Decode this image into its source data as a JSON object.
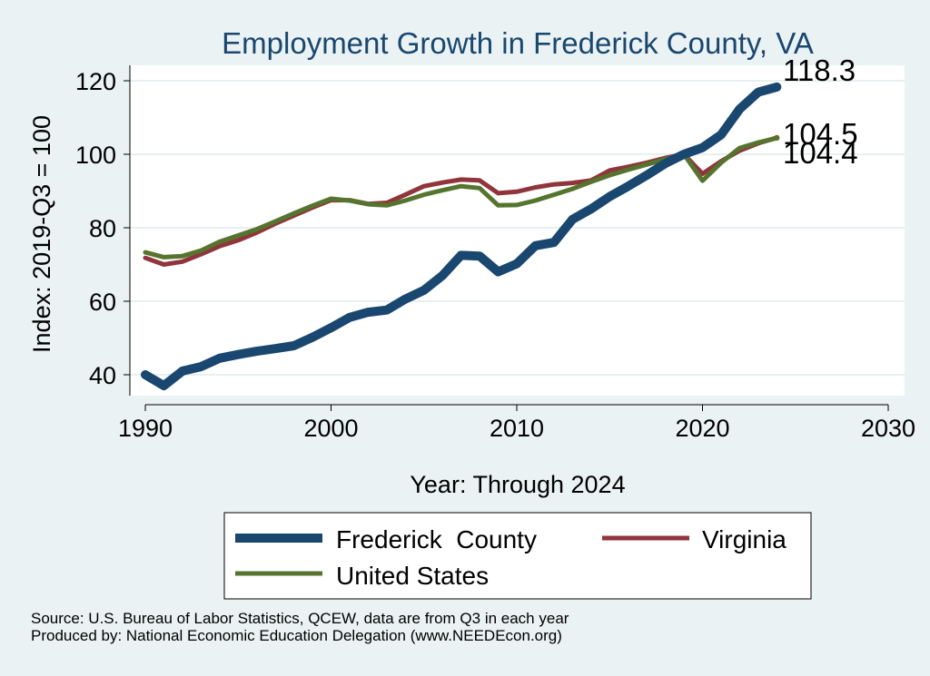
{
  "chart_data": {
    "type": "line",
    "title": "Employment Growth in Frederick County, VA",
    "xlabel": "Year: Through 2024",
    "ylabel": "Index: 2019-Q3 = 100",
    "xlim": [
      1990,
      2030
    ],
    "ylim": [
      35,
      122
    ],
    "xticks": [
      1990,
      2000,
      2010,
      2020,
      2030
    ],
    "yticks": [
      40,
      60,
      80,
      100,
      120
    ],
    "grid": true,
    "legend_position": "bottom",
    "x": [
      1990,
      1991,
      1992,
      1993,
      1994,
      1995,
      1996,
      1997,
      1998,
      1999,
      2000,
      2001,
      2002,
      2003,
      2004,
      2005,
      2006,
      2007,
      2008,
      2009,
      2010,
      2011,
      2012,
      2013,
      2014,
      2015,
      2016,
      2017,
      2018,
      2019,
      2020,
      2021,
      2022,
      2023,
      2024
    ],
    "series": [
      {
        "name": "Frederick  County",
        "color": "#1a476f",
        "end_label": "118.3",
        "values": [
          40.0,
          37.0,
          41.0,
          42.2,
          44.5,
          45.5,
          46.4,
          47.1,
          47.9,
          50.2,
          52.8,
          55.6,
          57.0,
          57.6,
          60.6,
          63.0,
          67.0,
          72.5,
          72.3,
          68.0,
          70.2,
          75.1,
          76.0,
          82.3,
          85.1,
          88.5,
          91.3,
          94.3,
          97.5,
          100.0,
          101.8,
          105.3,
          112.3,
          116.9,
          118.3
        ]
      },
      {
        "name": "Virginia",
        "color": "#90353b",
        "end_label": "104.5",
        "values": [
          71.8,
          70.0,
          70.8,
          72.8,
          75.0,
          76.6,
          78.7,
          81.1,
          83.3,
          85.5,
          87.5,
          87.5,
          86.5,
          86.8,
          89.0,
          91.3,
          92.3,
          93.1,
          92.9,
          89.4,
          89.8,
          91.0,
          91.8,
          92.2,
          92.9,
          95.6,
          96.6,
          97.7,
          99.0,
          100.0,
          94.7,
          98.1,
          101.0,
          103.0,
          104.5
        ]
      },
      {
        "name": "United States",
        "color": "#55752f",
        "end_label": "104.4",
        "values": [
          73.3,
          72.0,
          72.3,
          73.8,
          76.2,
          77.9,
          79.6,
          81.7,
          83.9,
          86.0,
          87.9,
          87.4,
          86.4,
          86.1,
          87.4,
          89.0,
          90.2,
          91.3,
          90.8,
          86.1,
          86.2,
          87.4,
          89.0,
          90.6,
          92.5,
          94.3,
          95.8,
          97.2,
          98.7,
          100.0,
          92.8,
          97.7,
          101.7,
          103.2,
          104.4
        ]
      }
    ]
  },
  "notes": {
    "source": "Source: U.S. Bureau of Labor Statistics, QCEW, data are from Q3 in each year",
    "producer": "Produced by: National Economic Education Delegation (www.NEEDEcon.org)"
  }
}
